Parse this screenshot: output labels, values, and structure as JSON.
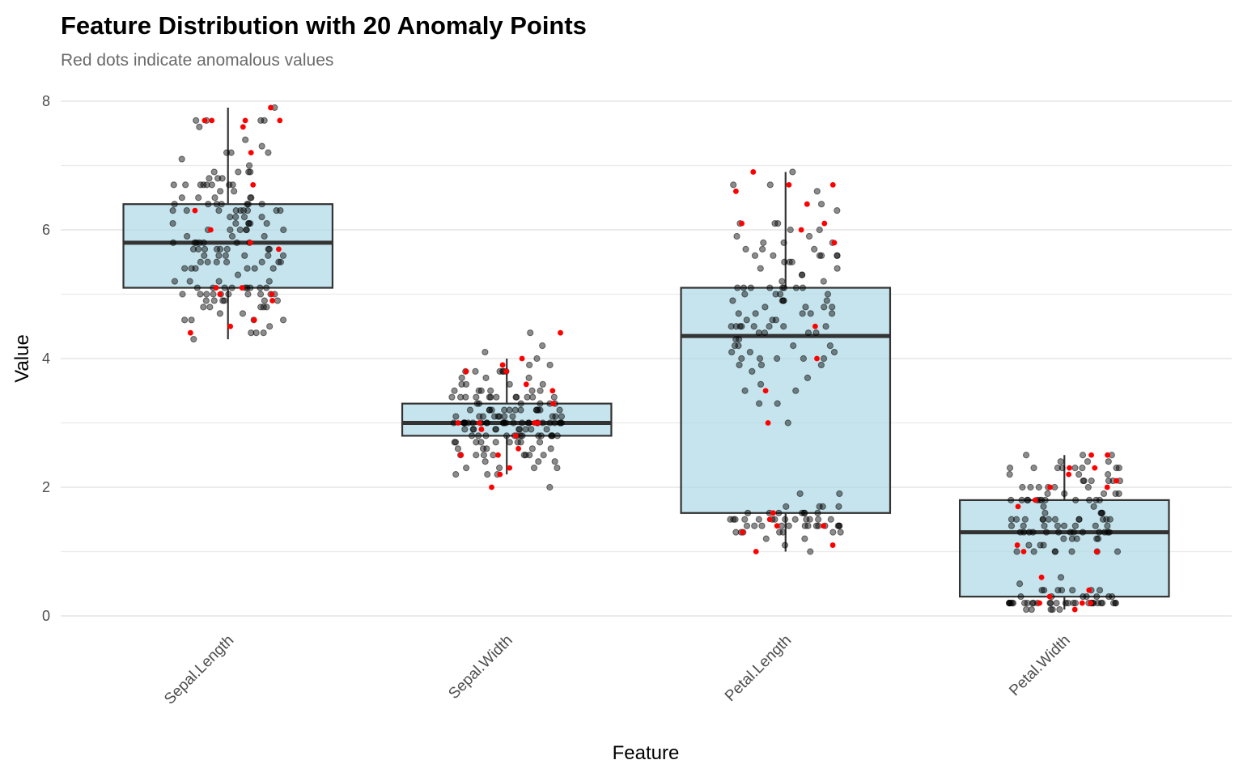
{
  "chart_data": {
    "type": "box",
    "title": "Feature Distribution with 20 Anomaly Points",
    "subtitle": "Red dots indicate anomalous values",
    "xlabel": "Feature",
    "ylabel": "Value",
    "ylim": [
      0,
      8
    ],
    "yticks": [
      "0",
      "2",
      "4",
      "6",
      "8"
    ],
    "grid": true,
    "categories": [
      "Sepal.Length",
      "Sepal.Width",
      "Petal.Length",
      "Petal.Width"
    ],
    "colors": {
      "box_fill": "#add8e6",
      "box_line": "#333333",
      "point": "#000000",
      "anomaly": "#ff0000",
      "grid": "#ebebeb"
    },
    "boxes": [
      {
        "min": 4.3,
        "q1": 5.1,
        "median": 5.8,
        "q3": 6.4,
        "max": 7.9
      },
      {
        "min": 2.2,
        "q1": 2.8,
        "median": 3.0,
        "q3": 3.3,
        "max": 4.0
      },
      {
        "min": 1.0,
        "q1": 1.6,
        "median": 4.35,
        "q3": 5.1,
        "max": 6.9
      },
      {
        "min": 0.1,
        "q1": 0.3,
        "median": 1.3,
        "q3": 1.8,
        "max": 2.5
      }
    ],
    "points": [
      [
        5.1,
        4.9,
        4.7,
        4.6,
        5.0,
        5.4,
        4.6,
        5.0,
        4.4,
        4.9,
        5.4,
        4.8,
        4.8,
        4.3,
        5.8,
        5.7,
        5.4,
        5.1,
        5.7,
        5.1,
        5.4,
        5.1,
        4.6,
        5.1,
        4.8,
        5.0,
        5.0,
        5.2,
        5.2,
        4.7,
        4.8,
        5.4,
        5.2,
        5.5,
        4.9,
        5.0,
        5.5,
        4.9,
        4.4,
        5.1,
        5.0,
        4.5,
        4.4,
        5.0,
        5.1,
        4.8,
        5.1,
        4.6,
        5.3,
        5.0,
        7.0,
        6.4,
        6.9,
        5.5,
        6.5,
        5.7,
        6.3,
        4.9,
        6.6,
        5.2,
        5.0,
        5.9,
        6.0,
        6.1,
        5.6,
        6.7,
        5.6,
        5.8,
        6.2,
        5.6,
        5.9,
        6.1,
        6.3,
        6.1,
        6.4,
        6.6,
        6.8,
        6.7,
        6.0,
        5.7,
        5.5,
        5.5,
        5.8,
        6.0,
        5.4,
        6.0,
        6.7,
        6.3,
        5.6,
        5.5,
        5.5,
        6.1,
        5.8,
        5.0,
        5.6,
        5.7,
        5.7,
        6.2,
        5.1,
        5.7,
        6.3,
        5.8,
        7.1,
        6.3,
        6.5,
        7.6,
        4.9,
        7.3,
        6.7,
        7.2,
        6.5,
        6.4,
        6.8,
        5.7,
        5.8,
        6.4,
        6.5,
        7.7,
        7.7,
        6.0,
        6.9,
        5.6,
        7.7,
        6.3,
        6.7,
        7.2,
        6.2,
        6.1,
        6.4,
        7.2,
        7.4,
        7.9,
        6.4,
        6.3,
        6.1,
        7.7,
        6.3,
        6.4,
        6.0,
        6.9,
        6.7,
        6.9,
        5.8,
        6.8,
        6.7,
        6.7,
        6.3,
        6.5,
        6.2,
        5.9
      ],
      [
        3.5,
        3.0,
        3.2,
        3.1,
        3.6,
        3.9,
        3.4,
        3.4,
        2.9,
        3.1,
        3.7,
        3.4,
        3.0,
        3.0,
        4.0,
        4.4,
        3.9,
        3.5,
        3.8,
        3.8,
        3.4,
        3.7,
        3.6,
        3.3,
        3.4,
        3.0,
        3.4,
        3.5,
        3.4,
        3.2,
        3.1,
        3.4,
        4.1,
        4.2,
        3.1,
        3.2,
        3.5,
        3.6,
        3.0,
        3.4,
        3.5,
        2.3,
        3.2,
        3.5,
        3.8,
        3.0,
        3.8,
        3.2,
        3.7,
        3.3,
        3.2,
        3.2,
        3.1,
        2.3,
        2.8,
        2.8,
        3.3,
        2.4,
        2.9,
        2.7,
        2.0,
        3.0,
        2.2,
        2.9,
        2.9,
        3.1,
        3.0,
        2.7,
        2.2,
        2.5,
        3.2,
        2.8,
        2.5,
        2.8,
        2.9,
        3.0,
        2.8,
        3.0,
        2.9,
        2.6,
        2.4,
        2.4,
        2.7,
        2.7,
        3.0,
        3.4,
        3.1,
        2.3,
        3.0,
        2.5,
        2.6,
        3.0,
        2.6,
        2.3,
        2.7,
        3.0,
        2.9,
        2.9,
        2.5,
        2.8,
        3.3,
        2.7,
        3.0,
        2.9,
        3.0,
        3.0,
        2.5,
        2.9,
        2.5,
        3.6,
        3.2,
        2.7,
        3.0,
        2.5,
        2.8,
        3.2,
        3.0,
        3.8,
        2.6,
        2.2,
        3.2,
        2.8,
        2.8,
        2.7,
        3.3,
        3.2,
        2.8,
        3.0,
        2.8,
        3.0,
        2.8,
        3.8,
        2.8,
        2.8,
        2.6,
        3.0,
        3.4,
        3.1,
        3.0,
        3.1,
        3.1,
        3.1,
        2.7,
        3.2,
        3.3,
        3.0,
        2.5,
        3.0,
        3.4,
        3.0
      ],
      [
        1.4,
        1.4,
        1.3,
        1.5,
        1.4,
        1.7,
        1.4,
        1.5,
        1.4,
        1.5,
        1.5,
        1.6,
        1.4,
        1.1,
        1.2,
        1.5,
        1.3,
        1.4,
        1.7,
        1.5,
        1.7,
        1.5,
        1.0,
        1.7,
        1.9,
        1.6,
        1.6,
        1.5,
        1.4,
        1.6,
        1.6,
        1.5,
        1.5,
        1.4,
        1.5,
        1.2,
        1.3,
        1.4,
        1.3,
        1.5,
        1.3,
        1.3,
        1.3,
        1.6,
        1.9,
        1.4,
        1.6,
        1.4,
        1.5,
        1.4,
        4.7,
        4.5,
        4.9,
        4.0,
        4.6,
        4.5,
        4.7,
        3.3,
        4.6,
        3.9,
        3.5,
        4.2,
        4.0,
        4.7,
        3.6,
        4.4,
        4.5,
        4.1,
        4.5,
        3.9,
        4.8,
        4.0,
        4.9,
        4.7,
        4.3,
        4.4,
        4.8,
        5.0,
        4.5,
        3.5,
        3.8,
        3.7,
        3.9,
        5.1,
        4.5,
        4.5,
        4.7,
        4.4,
        4.1,
        4.0,
        4.4,
        4.6,
        4.0,
        3.3,
        4.2,
        4.2,
        4.2,
        4.3,
        3.0,
        4.1,
        6.0,
        5.1,
        5.9,
        5.6,
        5.8,
        6.6,
        4.5,
        6.3,
        5.8,
        6.1,
        5.1,
        5.3,
        5.5,
        5.0,
        5.1,
        5.3,
        5.5,
        6.7,
        6.9,
        5.0,
        5.7,
        4.9,
        6.7,
        4.9,
        5.7,
        6.0,
        4.8,
        4.9,
        5.6,
        5.8,
        6.1,
        6.4,
        5.6,
        5.1,
        5.6,
        6.1,
        5.6,
        5.5,
        4.8,
        5.4,
        5.6,
        5.1,
        5.1,
        5.9,
        5.7,
        5.2,
        5.0,
        5.2,
        5.4,
        5.1
      ],
      [
        0.2,
        0.2,
        0.2,
        0.2,
        0.2,
        0.4,
        0.3,
        0.2,
        0.2,
        0.1,
        0.2,
        0.2,
        0.1,
        0.1,
        0.2,
        0.4,
        0.4,
        0.3,
        0.3,
        0.3,
        0.2,
        0.4,
        0.2,
        0.5,
        0.2,
        0.2,
        0.4,
        0.2,
        0.2,
        0.2,
        0.2,
        0.4,
        0.1,
        0.2,
        0.2,
        0.2,
        0.2,
        0.1,
        0.2,
        0.2,
        0.3,
        0.3,
        0.2,
        0.6,
        0.4,
        0.3,
        0.2,
        0.2,
        0.2,
        0.2,
        1.4,
        1.5,
        1.5,
        1.3,
        1.5,
        1.3,
        1.6,
        1.0,
        1.3,
        1.4,
        1.0,
        1.5,
        1.0,
        1.4,
        1.3,
        1.4,
        1.5,
        1.0,
        1.5,
        1.1,
        1.8,
        1.3,
        1.5,
        1.2,
        1.3,
        1.4,
        1.4,
        1.7,
        1.5,
        1.0,
        1.1,
        1.0,
        1.2,
        1.6,
        1.5,
        1.6,
        1.5,
        1.3,
        1.3,
        1.3,
        1.2,
        1.4,
        1.2,
        1.0,
        1.3,
        1.2,
        1.3,
        1.3,
        1.1,
        1.3,
        2.5,
        1.9,
        2.1,
        1.8,
        2.2,
        2.1,
        1.7,
        1.8,
        1.8,
        2.5,
        2.0,
        1.9,
        2.1,
        2.0,
        2.4,
        2.3,
        1.8,
        2.2,
        2.3,
        1.5,
        2.3,
        2.0,
        2.0,
        1.8,
        2.1,
        1.8,
        1.8,
        1.8,
        2.1,
        1.6,
        1.9,
        2.0,
        2.2,
        1.5,
        1.4,
        2.3,
        2.4,
        1.8,
        1.8,
        2.1,
        2.4,
        2.3,
        1.9,
        2.3,
        2.5,
        2.3,
        1.9,
        2.0,
        2.3,
        1.8
      ]
    ],
    "anomalies": [
      [
        7.9,
        7.7,
        7.7,
        7.7,
        7.7,
        7.6,
        7.2,
        6.7,
        6.3,
        6.0,
        5.8,
        5.7,
        5.1,
        5.1,
        5.0,
        5.0,
        4.9,
        4.6,
        4.5,
        4.4
      ],
      [
        4.4,
        4.0,
        3.9,
        3.8,
        3.8,
        3.6,
        3.5,
        3.3,
        3.0,
        3.0,
        3.0,
        3.0,
        2.9,
        2.8,
        2.6,
        2.5,
        2.5,
        2.3,
        2.2,
        2.0
      ],
      [
        6.9,
        6.7,
        6.7,
        6.6,
        6.4,
        6.1,
        6.1,
        6.0,
        5.8,
        4.5,
        4.0,
        3.5,
        3.0,
        1.6,
        1.5,
        1.4,
        1.4,
        1.3,
        1.1,
        1.0
      ],
      [
        2.5,
        2.5,
        2.3,
        2.3,
        2.2,
        2.1,
        2.0,
        2.0,
        1.8,
        1.7,
        1.1,
        1.0,
        1.0,
        0.6,
        0.4,
        0.3,
        0.2,
        0.2,
        0.2,
        0.1
      ]
    ]
  }
}
